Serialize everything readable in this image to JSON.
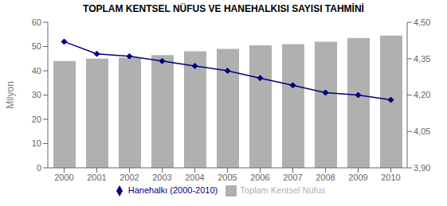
{
  "chart_data": {
    "type": "bar",
    "title": "TOPLAM KENTSEL NÜFUS VE HANEHALKISI SAYISI TAHMİNİ",
    "categories": [
      "2000",
      "2001",
      "2002",
      "2003",
      "2004",
      "2005",
      "2006",
      "2007",
      "2008",
      "2009",
      "2010"
    ],
    "series": [
      {
        "name": "Toplam Kentsel Nüfus",
        "type": "bar",
        "color": "#b0b0b0",
        "values": [
          44.0,
          45.0,
          45.5,
          46.5,
          48.0,
          49.0,
          50.5,
          51.0,
          52.0,
          53.5,
          54.5
        ]
      },
      {
        "name": "Hanehalkı (2000-2010)",
        "type": "line",
        "axis": "y2",
        "color": "#000080",
        "marker": "diamond",
        "values": [
          4.42,
          4.37,
          4.36,
          4.34,
          4.32,
          4.3,
          4.27,
          4.24,
          4.21,
          4.2,
          4.18
        ]
      }
    ],
    "y_label": "Milyon",
    "ylim": [
      0,
      60
    ],
    "yticks": [
      0,
      10,
      20,
      30,
      40,
      50,
      60
    ],
    "y2lim": [
      3.9,
      4.5
    ],
    "y2ticks": [
      {
        "value": 3.9,
        "label": "3,90"
      },
      {
        "value": 4.05,
        "label": "4,05"
      },
      {
        "value": 4.2,
        "label": "4,20"
      },
      {
        "value": 4.35,
        "label": "4,35"
      },
      {
        "value": 4.5,
        "label": "4,50"
      }
    ],
    "grid": false,
    "legend": "bottom"
  }
}
